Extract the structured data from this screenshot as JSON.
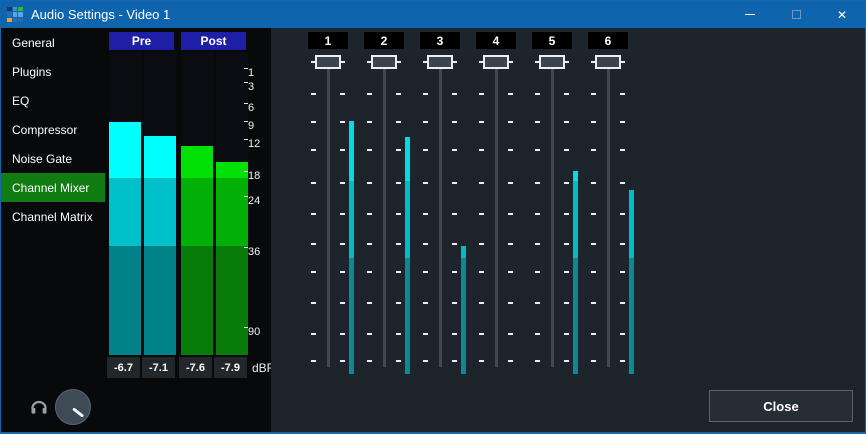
{
  "window": {
    "title": "Audio Settings - Video 1",
    "controls": {
      "minimize": "minimize",
      "maximize": "maximize",
      "close": "close"
    }
  },
  "sidebar": {
    "items": [
      {
        "label": "General",
        "selected": false
      },
      {
        "label": "Plugins",
        "selected": false
      },
      {
        "label": "EQ",
        "selected": false
      },
      {
        "label": "Compressor",
        "selected": false
      },
      {
        "label": "Noise Gate",
        "selected": false
      },
      {
        "label": "Channel Mixer",
        "selected": true
      },
      {
        "label": "Channel Matrix",
        "selected": false
      }
    ]
  },
  "meters": {
    "groups": [
      {
        "label": "Pre",
        "scheme": "pre",
        "channels": [
          {
            "bar_db": 8.2,
            "value": "-6.7"
          },
          {
            "bar_db": 10.5,
            "value": "-7.1"
          }
        ]
      },
      {
        "label": "Post",
        "scheme": "post",
        "channels": [
          {
            "bar_db": 12.2,
            "value": "-7.6"
          },
          {
            "bar_db": 15.2,
            "value": "-7.9"
          }
        ]
      }
    ],
    "scale_labels": [
      "1",
      "3",
      "6",
      "9",
      "12",
      "18",
      "24",
      "36",
      "90"
    ],
    "unit_label": "dBFS"
  },
  "channel_mixer": {
    "channels": [
      {
        "label": "1",
        "slider_pos": "top",
        "meter_level": 0.81
      },
      {
        "label": "2",
        "slider_pos": "top",
        "meter_level": 0.76
      },
      {
        "label": "3",
        "slider_pos": "top",
        "meter_level": 0.41
      },
      {
        "label": "4",
        "slider_pos": "top",
        "meter_level": 0.0
      },
      {
        "label": "5",
        "slider_pos": "top",
        "meter_level": 0.65
      },
      {
        "label": "6",
        "slider_pos": "top",
        "meter_level": 0.59
      }
    ]
  },
  "footer": {
    "close_label": "Close"
  },
  "icons": [
    "app-grid-icon",
    "minimize-icon",
    "maximize-icon",
    "close-icon",
    "headphones-icon",
    "monitor-volume-knob"
  ],
  "colors": {
    "titlebar": "#0f64ae",
    "window_border": "#1566ab",
    "sidebar_selected": "#117c11",
    "group_label_bg": "#1e1ea6",
    "pre_bands": [
      "#00ffff",
      "#00c1c9",
      "#018289"
    ],
    "post_bands": [
      "#00e206",
      "#00b006",
      "#087c08"
    ],
    "channel_bar_bands": [
      "#00dbe4",
      "#00bcc6",
      "#0b8a94"
    ],
    "app_icon_cells": [
      "#16395e",
      "#3f8ed2",
      "#2ebd2e",
      "#2a6cb0",
      "#56a6e6",
      "#56a6e6",
      "#eea12b",
      "#2a6cb0",
      "#2a6cb0"
    ]
  }
}
